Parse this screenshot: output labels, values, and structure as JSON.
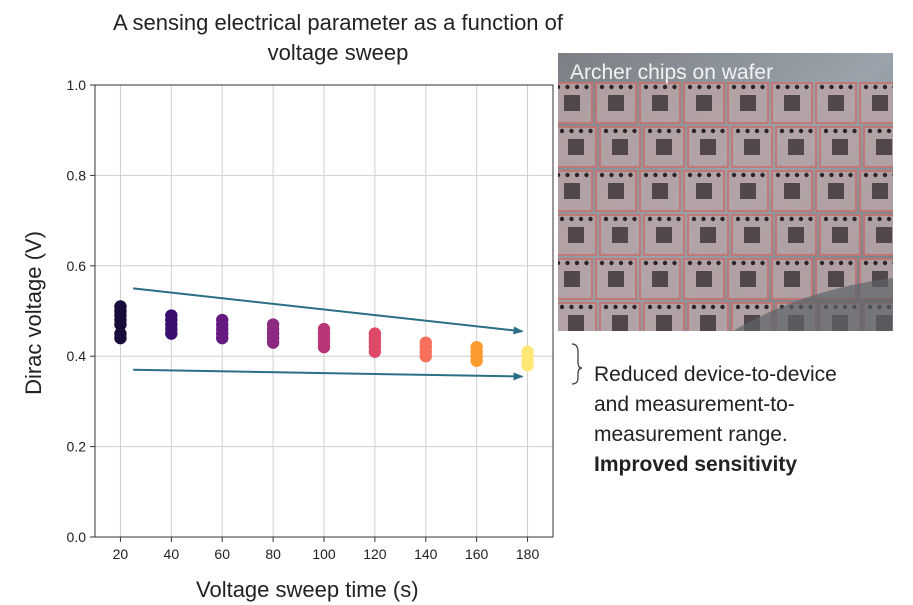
{
  "title_line1": "A sensing electrical parameter as a function of",
  "title_line2": "voltage sweep",
  "photo_label": "Archer chips on wafer",
  "annotation": {
    "line1": "Reduced device-to-device",
    "line2": "and measurement-to-",
    "line3": "measurement range.",
    "line4": "Improved sensitivity"
  },
  "chart_data": {
    "type": "scatter",
    "xlabel": "Voltage sweep time (s)",
    "ylabel": "Dirac voltage (V)",
    "xlim": [
      10,
      190
    ],
    "ylim": [
      0.0,
      1.0
    ],
    "x_ticks": [
      20,
      40,
      60,
      80,
      100,
      120,
      140,
      160,
      180
    ],
    "y_ticks": [
      "0.0",
      "0.2",
      "0.4",
      "0.6",
      "0.8",
      "1.0"
    ],
    "grid": true,
    "points": [
      {
        "x": 20,
        "ys": [
          0.44,
          0.45,
          0.47,
          0.48,
          0.49,
          0.5,
          0.51
        ],
        "color": "#1a0c3a"
      },
      {
        "x": 40,
        "ys": [
          0.45,
          0.46,
          0.47,
          0.48,
          0.49
        ],
        "color": "#3b0f6f"
      },
      {
        "x": 60,
        "ys": [
          0.44,
          0.45,
          0.46,
          0.47,
          0.48
        ],
        "color": "#641a80"
      },
      {
        "x": 80,
        "ys": [
          0.43,
          0.44,
          0.45,
          0.46,
          0.47
        ],
        "color": "#8c2981"
      },
      {
        "x": 100,
        "ys": [
          0.42,
          0.43,
          0.44,
          0.45,
          0.46
        ],
        "color": "#b73779"
      },
      {
        "x": 120,
        "ys": [
          0.41,
          0.42,
          0.43,
          0.44,
          0.45
        ],
        "color": "#de4968"
      },
      {
        "x": 140,
        "ys": [
          0.4,
          0.41,
          0.42,
          0.43
        ],
        "color": "#f7705c"
      },
      {
        "x": 160,
        "ys": [
          0.39,
          0.4,
          0.41,
          0.42
        ],
        "color": "#fb9b2d"
      },
      {
        "x": 180,
        "ys": [
          0.38,
          0.39,
          0.4,
          0.41
        ],
        "color": "#fde877"
      }
    ],
    "trend_arrows": [
      {
        "from": [
          25,
          0.55
        ],
        "to": [
          178,
          0.455
        ]
      },
      {
        "from": [
          25,
          0.37
        ],
        "to": [
          178,
          0.355
        ]
      }
    ],
    "arrow_color": "#2b6f86"
  }
}
